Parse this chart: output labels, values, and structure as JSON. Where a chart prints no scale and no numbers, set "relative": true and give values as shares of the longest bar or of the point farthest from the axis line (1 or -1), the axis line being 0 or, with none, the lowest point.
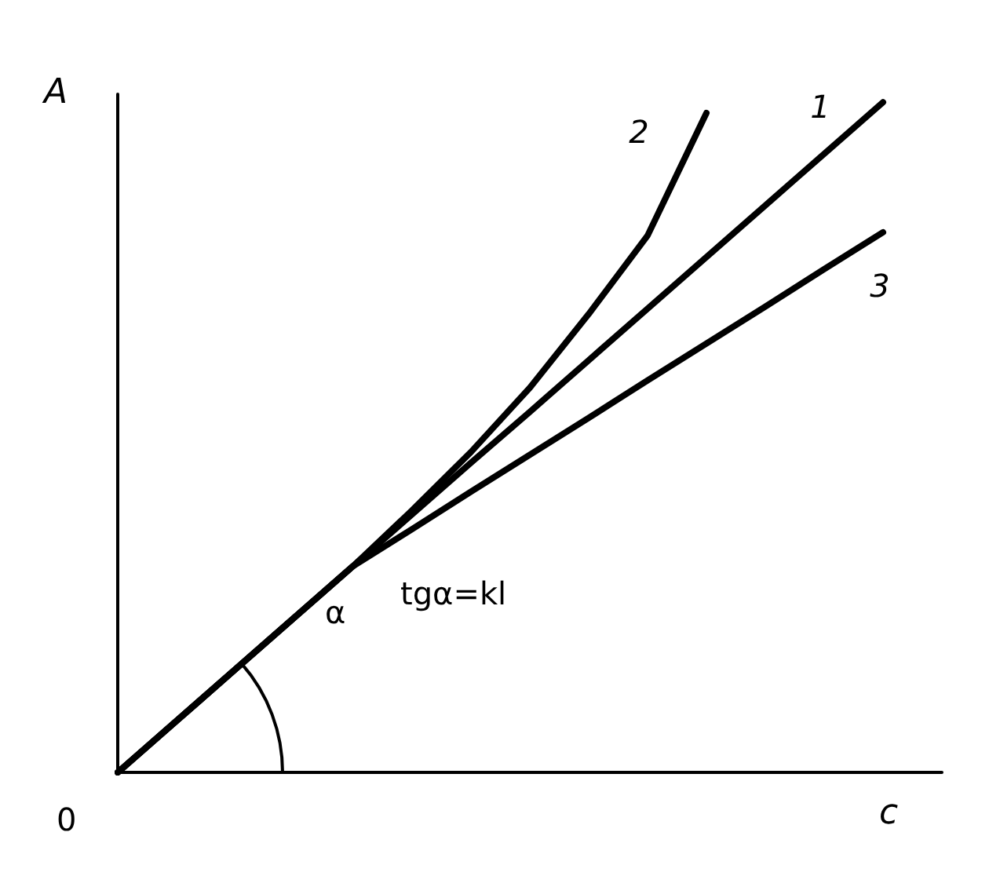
{
  "chart_data": {
    "type": "line",
    "relative": true,
    "xlabel": "c",
    "ylabel": "A",
    "annotations": [
      "0",
      "α",
      "tgα=kl"
    ],
    "categories": [
      null,
      null,
      null,
      null,
      null,
      null,
      null,
      null,
      null,
      null,
      null,
      null,
      null,
      null,
      null
    ],
    "series": [
      {
        "name": "1",
        "color": "#000000",
        "values": [
          0,
          0.077,
          0.154,
          0.231,
          0.308,
          0.385,
          0.462,
          0.538,
          0.615,
          0.692,
          0.769,
          0.846,
          0.923,
          1,
          null
        ]
      },
      {
        "name": "2",
        "color": "#000000",
        "values": [
          0,
          0.077,
          0.154,
          0.231,
          0.308,
          0.391,
          0.478,
          0.574,
          0.684,
          0.801,
          0.984,
          null,
          null,
          null,
          null
        ]
      },
      {
        "name": "3",
        "color": "#000000",
        "values": [
          0,
          0.077,
          0.154,
          0.231,
          0.308,
          0.363,
          0.419,
          0.474,
          0.529,
          0.585,
          0.64,
          0.695,
          0.751,
          0.806,
          null
        ]
      }
    ],
    "grid": false,
    "legend": false,
    "marker": "none",
    "line_style": "solid"
  }
}
